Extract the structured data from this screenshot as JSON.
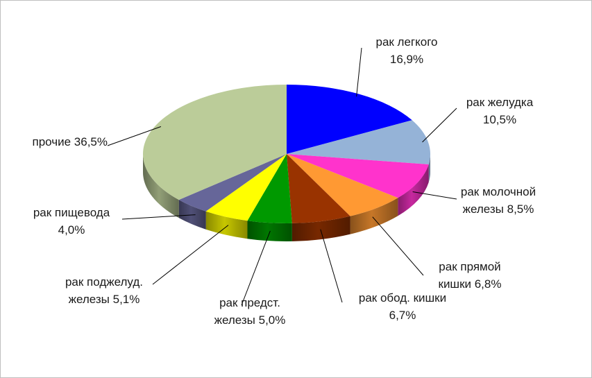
{
  "chart_data": {
    "type": "pie",
    "title": "",
    "legend": "none",
    "slices": [
      {
        "label_lines": [
          "рак легкого",
          "16,9%"
        ],
        "value": 16.9,
        "color": "#0000FF"
      },
      {
        "label_lines": [
          "рак желудка",
          "10,5%"
        ],
        "value": 10.5,
        "color": "#95B3D7"
      },
      {
        "label_lines": [
          "рак молочной",
          "железы 8,5%"
        ],
        "value": 8.5,
        "color": "#FF33CC"
      },
      {
        "label_lines": [
          "рак прямой",
          "кишки 6,8%"
        ],
        "value": 6.8,
        "color": "#FF9933"
      },
      {
        "label_lines": [
          "рак обод. кишки",
          "6,7%"
        ],
        "value": 6.7,
        "color": "#993300"
      },
      {
        "label_lines": [
          "рак предст.",
          "железы 5,0%"
        ],
        "value": 5.0,
        "color": "#009900"
      },
      {
        "label_lines": [
          "рак поджелуд.",
          "железы 5,1%"
        ],
        "value": 5.1,
        "color": "#FFFF00"
      },
      {
        "label_lines": [
          "рак пищевода",
          "4,0%"
        ],
        "value": 4.0,
        "color": "#666699"
      },
      {
        "label_lines": [
          "прочие 36,5%"
        ],
        "value": 36.5,
        "color": "#BBCC99"
      }
    ]
  }
}
